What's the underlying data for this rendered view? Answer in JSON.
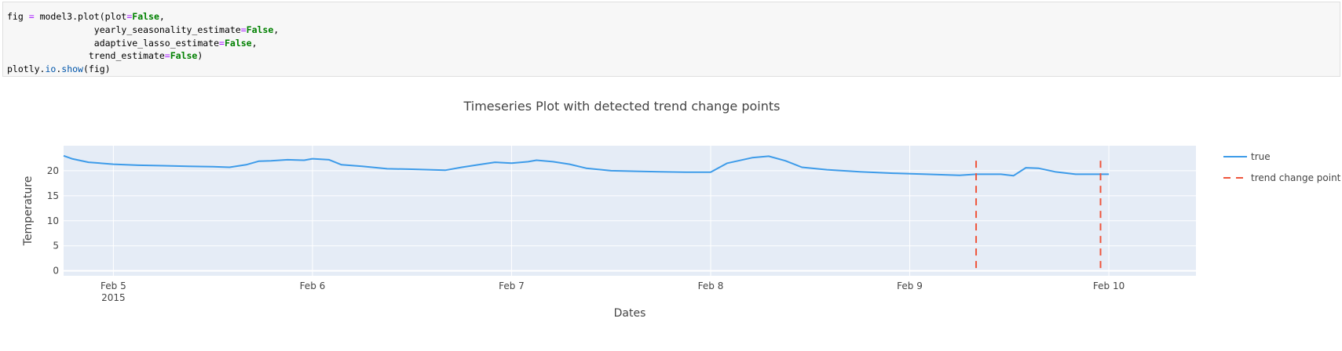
{
  "code_cell": {
    "lines": [
      [
        {
          "t": "fig "
        },
        {
          "t": "=",
          "c": "op"
        },
        {
          "t": " model3.plot(plot"
        },
        {
          "t": "=",
          "c": "op"
        },
        {
          "t": "False",
          "c": "kw"
        },
        {
          "t": ","
        }
      ],
      [
        {
          "t": "                yearly_seasonality_estimate"
        },
        {
          "t": "=",
          "c": "op"
        },
        {
          "t": "False",
          "c": "kw"
        },
        {
          "t": ","
        }
      ],
      [
        {
          "t": "                adaptive_lasso_estimate"
        },
        {
          "t": "=",
          "c": "op"
        },
        {
          "t": "False",
          "c": "kw"
        },
        {
          "t": ","
        }
      ],
      [
        {
          "t": "               trend_estimate"
        },
        {
          "t": "=",
          "c": "op"
        },
        {
          "t": "False",
          "c": "kw"
        },
        {
          "t": ")"
        }
      ],
      [
        {
          "t": "plotly."
        },
        {
          "t": "io",
          "c": "attr"
        },
        {
          "t": "."
        },
        {
          "t": "show",
          "c": "attr"
        },
        {
          "t": "(fig)"
        }
      ]
    ]
  },
  "chart_data": {
    "type": "line",
    "title": "Timeseries Plot with detected trend change points",
    "xlabel": "Dates",
    "ylabel": "Temperature",
    "xlim": [
      "2015-02-04 18:00",
      "2015-02-10 10:30"
    ],
    "ylim": [
      -1,
      25
    ],
    "x_ticks": [
      {
        "label": "Feb 5",
        "sublabel": "2015",
        "value": "2015-02-05 00:00"
      },
      {
        "label": "Feb 6",
        "sublabel": "",
        "value": "2015-02-06 00:00"
      },
      {
        "label": "Feb 7",
        "sublabel": "",
        "value": "2015-02-07 00:00"
      },
      {
        "label": "Feb 8",
        "sublabel": "",
        "value": "2015-02-08 00:00"
      },
      {
        "label": "Feb 9",
        "sublabel": "",
        "value": "2015-02-09 00:00"
      },
      {
        "label": "Feb 10",
        "sublabel": "",
        "value": "2015-02-10 00:00"
      }
    ],
    "y_ticks": [
      0,
      5,
      10,
      15,
      20
    ],
    "grid": true,
    "legend_position": "right",
    "series": [
      {
        "name": "true",
        "color": "#3d9be9",
        "style": "solid",
        "points": [
          [
            "2015-02-04 18:00",
            23.0
          ],
          [
            "2015-02-04 19:00",
            22.4
          ],
          [
            "2015-02-04 21:00",
            21.7
          ],
          [
            "2015-02-05 00:00",
            21.3
          ],
          [
            "2015-02-05 03:00",
            21.1
          ],
          [
            "2015-02-05 06:00",
            21.0
          ],
          [
            "2015-02-05 09:00",
            20.9
          ],
          [
            "2015-02-05 12:00",
            20.8
          ],
          [
            "2015-02-05 14:00",
            20.7
          ],
          [
            "2015-02-05 16:00",
            21.2
          ],
          [
            "2015-02-05 17:30",
            21.9
          ],
          [
            "2015-02-05 19:00",
            22.0
          ],
          [
            "2015-02-05 21:00",
            22.2
          ],
          [
            "2015-02-05 23:00",
            22.1
          ],
          [
            "2015-02-06 00:00",
            22.4
          ],
          [
            "2015-02-06 02:00",
            22.2
          ],
          [
            "2015-02-06 03:30",
            21.2
          ],
          [
            "2015-02-06 06:00",
            20.9
          ],
          [
            "2015-02-06 09:00",
            20.4
          ],
          [
            "2015-02-06 12:00",
            20.3
          ],
          [
            "2015-02-06 16:00",
            20.1
          ],
          [
            "2015-02-06 18:00",
            20.7
          ],
          [
            "2015-02-06 20:00",
            21.2
          ],
          [
            "2015-02-06 22:00",
            21.7
          ],
          [
            "2015-02-07 00:00",
            21.5
          ],
          [
            "2015-02-07 02:00",
            21.8
          ],
          [
            "2015-02-07 03:00",
            22.1
          ],
          [
            "2015-02-07 05:00",
            21.8
          ],
          [
            "2015-02-07 07:00",
            21.3
          ],
          [
            "2015-02-07 09:00",
            20.5
          ],
          [
            "2015-02-07 12:00",
            20.0
          ],
          [
            "2015-02-07 15:00",
            19.9
          ],
          [
            "2015-02-07 18:00",
            19.8
          ],
          [
            "2015-02-07 21:00",
            19.7
          ],
          [
            "2015-02-08 00:00",
            19.7
          ],
          [
            "2015-02-08 02:00",
            21.5
          ],
          [
            "2015-02-08 05:00",
            22.6
          ],
          [
            "2015-02-08 07:00",
            22.9
          ],
          [
            "2015-02-08 09:00",
            22.0
          ],
          [
            "2015-02-08 11:00",
            20.7
          ],
          [
            "2015-02-08 14:00",
            20.2
          ],
          [
            "2015-02-08 18:00",
            19.8
          ],
          [
            "2015-02-08 22:00",
            19.5
          ],
          [
            "2015-02-09 02:00",
            19.3
          ],
          [
            "2015-02-09 06:00",
            19.1
          ],
          [
            "2015-02-09 08:00",
            19.3
          ],
          [
            "2015-02-09 11:00",
            19.3
          ],
          [
            "2015-02-09 12:30",
            19.0
          ],
          [
            "2015-02-09 14:00",
            20.6
          ],
          [
            "2015-02-09 15:30",
            20.5
          ],
          [
            "2015-02-09 17:30",
            19.8
          ],
          [
            "2015-02-09 20:00",
            19.3
          ],
          [
            "2015-02-10 00:00",
            19.3
          ]
        ]
      },
      {
        "name": "trend change point",
        "color": "#ef553b",
        "style": "dashed",
        "vlines": [
          "2015-02-09 08:00",
          "2015-02-09 23:00"
        ],
        "y_range": [
          0,
          22
        ]
      }
    ]
  }
}
